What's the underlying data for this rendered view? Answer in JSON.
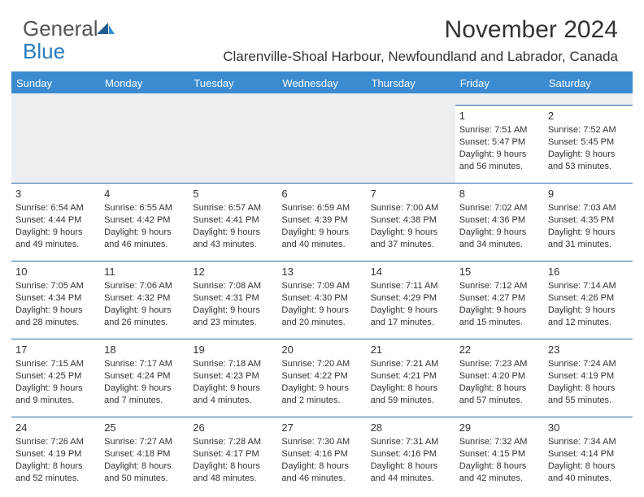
{
  "logo": {
    "text1": "General",
    "text2": "Blue"
  },
  "title": "November 2024",
  "subtitle": "Clarenville-Shoal Harbour, Newfoundland and Labrador, Canada",
  "colors": {
    "header_bg": "#3b8bd0",
    "header_text": "#ffffff",
    "row_border": "#2a6aa8",
    "blank_bg": "#eceff1",
    "body_text": "#333333",
    "logo_gray": "#555555",
    "logo_blue": "#2a7bbf"
  },
  "weekdays": [
    "Sunday",
    "Monday",
    "Tuesday",
    "Wednesday",
    "Thursday",
    "Friday",
    "Saturday"
  ],
  "weeks": [
    [
      null,
      null,
      null,
      null,
      null,
      {
        "n": "1",
        "sr": "Sunrise: 7:51 AM",
        "ss": "Sunset: 5:47 PM",
        "d1": "Daylight: 9 hours",
        "d2": "and 56 minutes."
      },
      {
        "n": "2",
        "sr": "Sunrise: 7:52 AM",
        "ss": "Sunset: 5:45 PM",
        "d1": "Daylight: 9 hours",
        "d2": "and 53 minutes."
      }
    ],
    [
      {
        "n": "3",
        "sr": "Sunrise: 6:54 AM",
        "ss": "Sunset: 4:44 PM",
        "d1": "Daylight: 9 hours",
        "d2": "and 49 minutes."
      },
      {
        "n": "4",
        "sr": "Sunrise: 6:55 AM",
        "ss": "Sunset: 4:42 PM",
        "d1": "Daylight: 9 hours",
        "d2": "and 46 minutes."
      },
      {
        "n": "5",
        "sr": "Sunrise: 6:57 AM",
        "ss": "Sunset: 4:41 PM",
        "d1": "Daylight: 9 hours",
        "d2": "and 43 minutes."
      },
      {
        "n": "6",
        "sr": "Sunrise: 6:59 AM",
        "ss": "Sunset: 4:39 PM",
        "d1": "Daylight: 9 hours",
        "d2": "and 40 minutes."
      },
      {
        "n": "7",
        "sr": "Sunrise: 7:00 AM",
        "ss": "Sunset: 4:38 PM",
        "d1": "Daylight: 9 hours",
        "d2": "and 37 minutes."
      },
      {
        "n": "8",
        "sr": "Sunrise: 7:02 AM",
        "ss": "Sunset: 4:36 PM",
        "d1": "Daylight: 9 hours",
        "d2": "and 34 minutes."
      },
      {
        "n": "9",
        "sr": "Sunrise: 7:03 AM",
        "ss": "Sunset: 4:35 PM",
        "d1": "Daylight: 9 hours",
        "d2": "and 31 minutes."
      }
    ],
    [
      {
        "n": "10",
        "sr": "Sunrise: 7:05 AM",
        "ss": "Sunset: 4:34 PM",
        "d1": "Daylight: 9 hours",
        "d2": "and 28 minutes."
      },
      {
        "n": "11",
        "sr": "Sunrise: 7:06 AM",
        "ss": "Sunset: 4:32 PM",
        "d1": "Daylight: 9 hours",
        "d2": "and 26 minutes."
      },
      {
        "n": "12",
        "sr": "Sunrise: 7:08 AM",
        "ss": "Sunset: 4:31 PM",
        "d1": "Daylight: 9 hours",
        "d2": "and 23 minutes."
      },
      {
        "n": "13",
        "sr": "Sunrise: 7:09 AM",
        "ss": "Sunset: 4:30 PM",
        "d1": "Daylight: 9 hours",
        "d2": "and 20 minutes."
      },
      {
        "n": "14",
        "sr": "Sunrise: 7:11 AM",
        "ss": "Sunset: 4:29 PM",
        "d1": "Daylight: 9 hours",
        "d2": "and 17 minutes."
      },
      {
        "n": "15",
        "sr": "Sunrise: 7:12 AM",
        "ss": "Sunset: 4:27 PM",
        "d1": "Daylight: 9 hours",
        "d2": "and 15 minutes."
      },
      {
        "n": "16",
        "sr": "Sunrise: 7:14 AM",
        "ss": "Sunset: 4:26 PM",
        "d1": "Daylight: 9 hours",
        "d2": "and 12 minutes."
      }
    ],
    [
      {
        "n": "17",
        "sr": "Sunrise: 7:15 AM",
        "ss": "Sunset: 4:25 PM",
        "d1": "Daylight: 9 hours",
        "d2": "and 9 minutes."
      },
      {
        "n": "18",
        "sr": "Sunrise: 7:17 AM",
        "ss": "Sunset: 4:24 PM",
        "d1": "Daylight: 9 hours",
        "d2": "and 7 minutes."
      },
      {
        "n": "19",
        "sr": "Sunrise: 7:18 AM",
        "ss": "Sunset: 4:23 PM",
        "d1": "Daylight: 9 hours",
        "d2": "and 4 minutes."
      },
      {
        "n": "20",
        "sr": "Sunrise: 7:20 AM",
        "ss": "Sunset: 4:22 PM",
        "d1": "Daylight: 9 hours",
        "d2": "and 2 minutes."
      },
      {
        "n": "21",
        "sr": "Sunrise: 7:21 AM",
        "ss": "Sunset: 4:21 PM",
        "d1": "Daylight: 8 hours",
        "d2": "and 59 minutes."
      },
      {
        "n": "22",
        "sr": "Sunrise: 7:23 AM",
        "ss": "Sunset: 4:20 PM",
        "d1": "Daylight: 8 hours",
        "d2": "and 57 minutes."
      },
      {
        "n": "23",
        "sr": "Sunrise: 7:24 AM",
        "ss": "Sunset: 4:19 PM",
        "d1": "Daylight: 8 hours",
        "d2": "and 55 minutes."
      }
    ],
    [
      {
        "n": "24",
        "sr": "Sunrise: 7:26 AM",
        "ss": "Sunset: 4:19 PM",
        "d1": "Daylight: 8 hours",
        "d2": "and 52 minutes."
      },
      {
        "n": "25",
        "sr": "Sunrise: 7:27 AM",
        "ss": "Sunset: 4:18 PM",
        "d1": "Daylight: 8 hours",
        "d2": "and 50 minutes."
      },
      {
        "n": "26",
        "sr": "Sunrise: 7:28 AM",
        "ss": "Sunset: 4:17 PM",
        "d1": "Daylight: 8 hours",
        "d2": "and 48 minutes."
      },
      {
        "n": "27",
        "sr": "Sunrise: 7:30 AM",
        "ss": "Sunset: 4:16 PM",
        "d1": "Daylight: 8 hours",
        "d2": "and 46 minutes."
      },
      {
        "n": "28",
        "sr": "Sunrise: 7:31 AM",
        "ss": "Sunset: 4:16 PM",
        "d1": "Daylight: 8 hours",
        "d2": "and 44 minutes."
      },
      {
        "n": "29",
        "sr": "Sunrise: 7:32 AM",
        "ss": "Sunset: 4:15 PM",
        "d1": "Daylight: 8 hours",
        "d2": "and 42 minutes."
      },
      {
        "n": "30",
        "sr": "Sunrise: 7:34 AM",
        "ss": "Sunset: 4:14 PM",
        "d1": "Daylight: 8 hours",
        "d2": "and 40 minutes."
      }
    ]
  ]
}
